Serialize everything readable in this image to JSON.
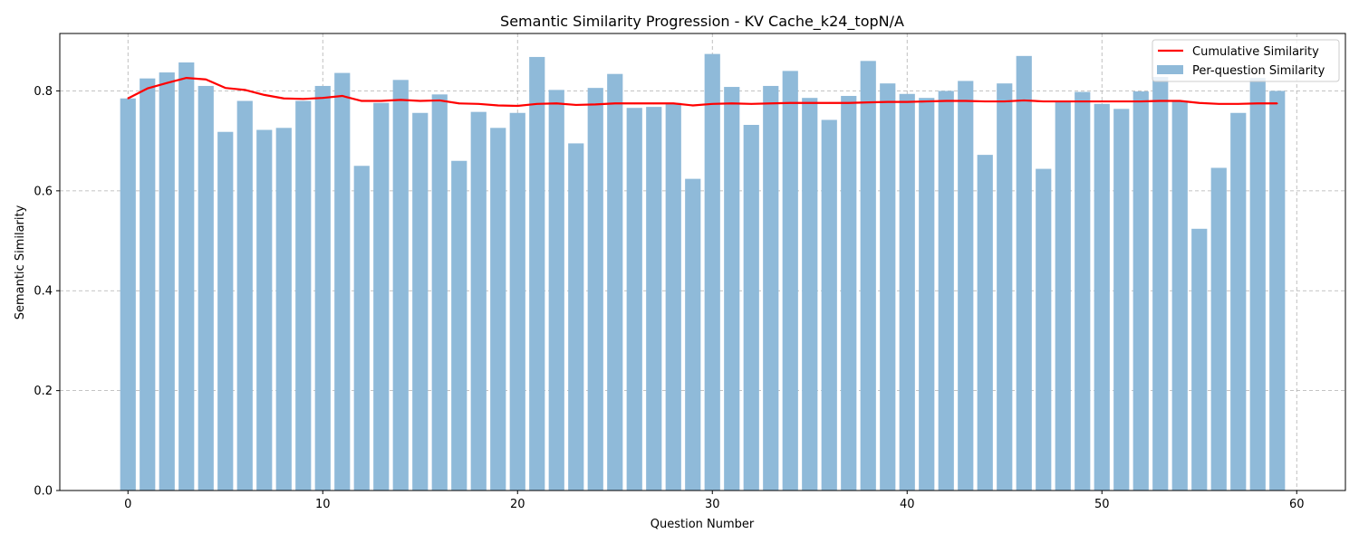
{
  "chart_data": {
    "type": "bar",
    "title": "Semantic Similarity Progression - KV Cache_k24_topN/A",
    "xlabel": "Question Number",
    "ylabel": "Semantic Similarity",
    "xlim": [
      -3.5,
      62.5
    ],
    "ylim": [
      0,
      0.915
    ],
    "x_ticks": [
      0,
      10,
      20,
      30,
      40,
      50,
      60
    ],
    "y_ticks": [
      0.0,
      0.2,
      0.4,
      0.6,
      0.8
    ],
    "y_tick_labels": [
      "0.0",
      "0.2",
      "0.4",
      "0.6",
      "0.8"
    ],
    "grid": true,
    "legend_position": "top-right",
    "x": [
      0,
      1,
      2,
      3,
      4,
      5,
      6,
      7,
      8,
      9,
      10,
      11,
      12,
      13,
      14,
      15,
      16,
      17,
      18,
      19,
      20,
      21,
      22,
      23,
      24,
      25,
      26,
      27,
      28,
      29,
      30,
      31,
      32,
      33,
      34,
      35,
      36,
      37,
      38,
      39,
      40,
      41,
      42,
      43,
      44,
      45,
      46,
      47,
      48,
      49,
      50,
      51,
      52,
      53,
      54,
      55,
      56,
      57,
      58,
      59
    ],
    "series": [
      {
        "name": "Cumulative Similarity",
        "kind": "line",
        "color": "#ff0000",
        "values": [
          0.785,
          0.805,
          0.816,
          0.826,
          0.823,
          0.806,
          0.802,
          0.792,
          0.785,
          0.784,
          0.786,
          0.79,
          0.78,
          0.78,
          0.782,
          0.78,
          0.781,
          0.775,
          0.774,
          0.771,
          0.77,
          0.774,
          0.775,
          0.772,
          0.773,
          0.775,
          0.775,
          0.775,
          0.775,
          0.771,
          0.774,
          0.775,
          0.774,
          0.775,
          0.776,
          0.776,
          0.776,
          0.776,
          0.777,
          0.778,
          0.778,
          0.779,
          0.78,
          0.78,
          0.779,
          0.779,
          0.781,
          0.779,
          0.779,
          0.779,
          0.779,
          0.779,
          0.779,
          0.78,
          0.78,
          0.776,
          0.774,
          0.774,
          0.775,
          0.775
        ]
      },
      {
        "name": "Per-question Similarity",
        "kind": "bar",
        "color": "#8fbad9",
        "values": [
          0.785,
          0.825,
          0.837,
          0.857,
          0.81,
          0.718,
          0.78,
          0.722,
          0.726,
          0.78,
          0.81,
          0.836,
          0.65,
          0.776,
          0.822,
          0.756,
          0.793,
          0.66,
          0.758,
          0.726,
          0.756,
          0.868,
          0.802,
          0.695,
          0.806,
          0.834,
          0.766,
          0.768,
          0.776,
          0.624,
          0.874,
          0.808,
          0.732,
          0.81,
          0.84,
          0.786,
          0.742,
          0.79,
          0.86,
          0.815,
          0.794,
          0.786,
          0.8,
          0.82,
          0.672,
          0.815,
          0.87,
          0.644,
          0.78,
          0.798,
          0.774,
          0.764,
          0.799,
          0.828,
          0.78,
          0.524,
          0.646,
          0.756,
          0.826,
          0.8
        ]
      }
    ]
  }
}
